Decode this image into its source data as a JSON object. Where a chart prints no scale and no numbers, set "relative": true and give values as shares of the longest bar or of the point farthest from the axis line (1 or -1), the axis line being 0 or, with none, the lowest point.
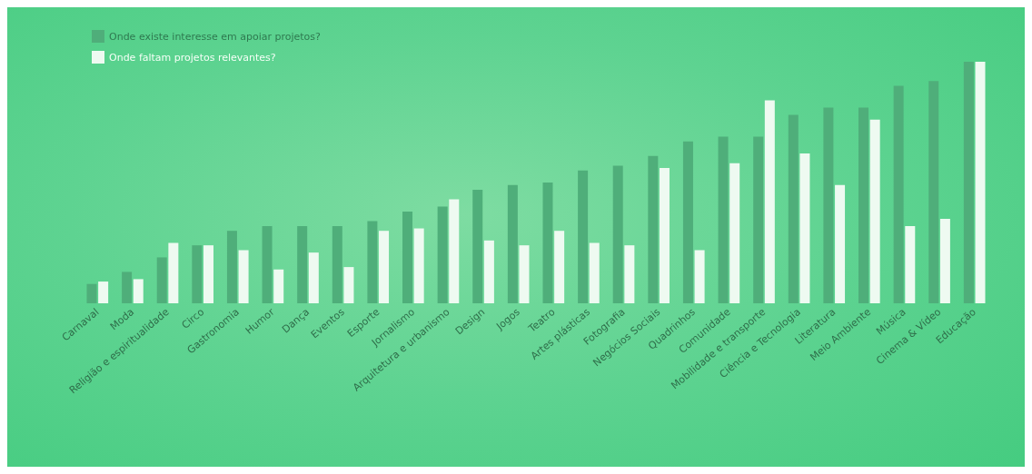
{
  "chart_data": {
    "type": "bar",
    "relative": true,
    "legend": "top left",
    "categories": [
      "Carnaval",
      "Moda",
      "Religião e espiritualidade",
      "Circo",
      "Gastronomia",
      "Humor",
      "Dança",
      "Eventos",
      "Esporte",
      "Jornalismo",
      "Arquitetura e urbanismo",
      "Design",
      "Jogos",
      "Teatro",
      "Artes plásticas",
      "Fotografia",
      "Negócios Sociais",
      "Quadrinhos",
      "Comunidade",
      "Mobilidade e transporte",
      "Ciência e Tecnologia",
      "Literatura",
      "Meio Ambiente",
      "Música",
      "Cinema & Vídeo",
      "Educação"
    ],
    "series": [
      {
        "name": "Onde existe interesse em apoiar projetos?",
        "color": "#4fae7a",
        "values": [
          0.08,
          0.13,
          0.19,
          0.24,
          0.3,
          0.32,
          0.32,
          0.32,
          0.34,
          0.38,
          0.4,
          0.47,
          0.49,
          0.5,
          0.55,
          0.57,
          0.61,
          0.67,
          0.69,
          0.69,
          0.78,
          0.81,
          0.81,
          0.9,
          0.92,
          1
        ]
      },
      {
        "name": "Onde faltam projetos relevantes?",
        "color": "#eefaf1",
        "values": [
          0.09,
          0.1,
          0.25,
          0.24,
          0.22,
          0.14,
          0.21,
          0.15,
          0.3,
          0.31,
          0.43,
          0.26,
          0.24,
          0.3,
          0.25,
          0.24,
          0.56,
          0.22,
          0.58,
          0.84,
          0.62,
          0.49,
          0.76,
          0.32,
          0.35,
          1
        ]
      }
    ]
  }
}
